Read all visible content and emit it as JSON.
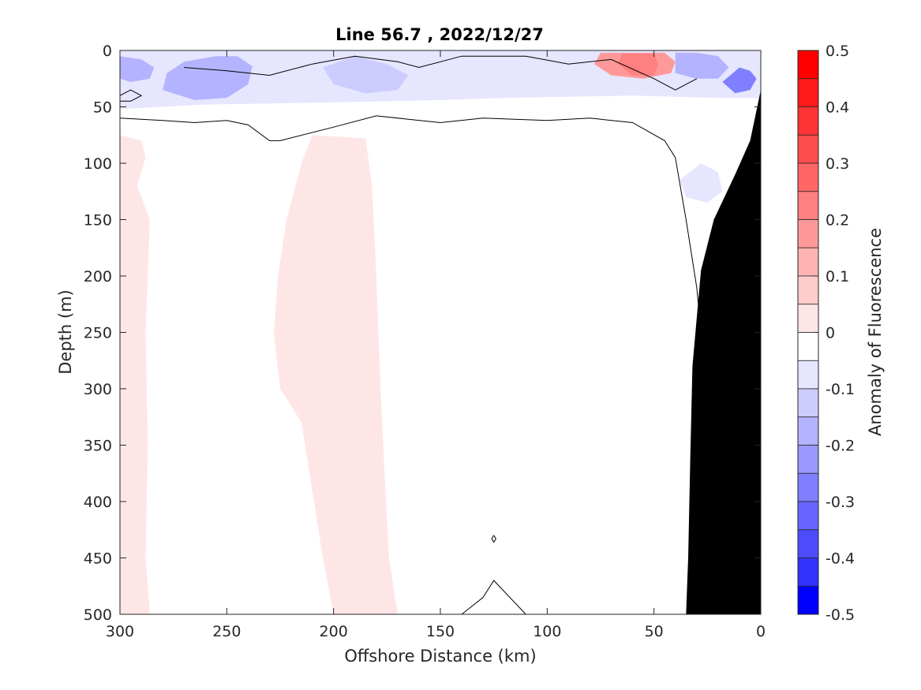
{
  "chart_data": {
    "type": "heatmap",
    "title": "Line 56.7 , 2022/12/27",
    "xlabel": "Offshore Distance (km)",
    "ylabel": "Depth (m)",
    "xlim": [
      300,
      0
    ],
    "ylim": [
      0,
      500
    ],
    "x_reversed": true,
    "y_reversed": true,
    "xticks": [
      300,
      250,
      200,
      150,
      100,
      50,
      0
    ],
    "yticks": [
      0,
      50,
      100,
      150,
      200,
      250,
      300,
      350,
      400,
      450,
      500
    ],
    "colorbar": {
      "label": "Anomaly of Fluorescence",
      "range": [
        -0.5,
        0.5
      ],
      "ticks": [
        0.5,
        0.4,
        0.3,
        0.2,
        0.1,
        0,
        -0.1,
        -0.2,
        -0.3,
        -0.4,
        -0.5
      ],
      "levels": [
        {
          "min": 0.45,
          "max": 0.5,
          "color": "#ff0000"
        },
        {
          "min": 0.4,
          "max": 0.45,
          "color": "#ff1a1a"
        },
        {
          "min": 0.35,
          "max": 0.4,
          "color": "#ff3333"
        },
        {
          "min": 0.3,
          "max": 0.35,
          "color": "#ff4d4d"
        },
        {
          "min": 0.25,
          "max": 0.3,
          "color": "#ff6666"
        },
        {
          "min": 0.2,
          "max": 0.25,
          "color": "#ff8080"
        },
        {
          "min": 0.15,
          "max": 0.2,
          "color": "#ff9999"
        },
        {
          "min": 0.1,
          "max": 0.15,
          "color": "#ffb3b3"
        },
        {
          "min": 0.05,
          "max": 0.1,
          "color": "#ffcccc"
        },
        {
          "min": 0.0,
          "max": 0.05,
          "color": "#ffe6e6"
        },
        {
          "min": -0.05,
          "max": 0.0,
          "color": "#ffffff"
        },
        {
          "min": -0.1,
          "max": -0.05,
          "color": "#e6e6ff"
        },
        {
          "min": -0.15,
          "max": -0.1,
          "color": "#ccccff"
        },
        {
          "min": -0.2,
          "max": -0.15,
          "color": "#b3b3ff"
        },
        {
          "min": -0.25,
          "max": -0.2,
          "color": "#9999ff"
        },
        {
          "min": -0.3,
          "max": -0.25,
          "color": "#8080ff"
        },
        {
          "min": -0.35,
          "max": -0.3,
          "color": "#6666ff"
        },
        {
          "min": -0.4,
          "max": -0.35,
          "color": "#4d4dff"
        },
        {
          "min": -0.45,
          "max": -0.4,
          "color": "#3333ff"
        },
        {
          "min": -0.5,
          "max": -0.45,
          "color": "#0000ff"
        }
      ]
    },
    "regions": [
      {
        "name": "surface-negative-band",
        "value": -0.08,
        "polygon": [
          [
            300,
            0
          ],
          [
            0,
            0
          ],
          [
            0,
            42
          ],
          [
            20,
            42
          ],
          [
            60,
            40
          ],
          [
            120,
            42
          ],
          [
            150,
            44
          ],
          [
            200,
            46
          ],
          [
            260,
            48
          ],
          [
            300,
            52
          ]
        ]
      },
      {
        "name": "surface-negative-left",
        "value": -0.17,
        "polygon": [
          [
            300,
            5
          ],
          [
            290,
            8
          ],
          [
            284,
            15
          ],
          [
            286,
            25
          ],
          [
            295,
            28
          ],
          [
            300,
            25
          ]
        ]
      },
      {
        "name": "surface-negative-center",
        "value": -0.17,
        "polygon": [
          [
            255,
            5
          ],
          [
            245,
            5
          ],
          [
            238,
            14
          ],
          [
            240,
            30
          ],
          [
            250,
            42
          ],
          [
            265,
            44
          ],
          [
            280,
            35
          ],
          [
            278,
            20
          ],
          [
            270,
            10
          ]
        ]
      },
      {
        "name": "surface-negative-midright",
        "value": -0.15,
        "polygon": [
          [
            190,
            5
          ],
          [
            175,
            12
          ],
          [
            165,
            22
          ],
          [
            170,
            35
          ],
          [
            185,
            38
          ],
          [
            200,
            30
          ],
          [
            205,
            15
          ]
        ]
      },
      {
        "name": "surface-negative-right",
        "value": -0.2,
        "polygon": [
          [
            40,
            2
          ],
          [
            30,
            2
          ],
          [
            20,
            5
          ],
          [
            15,
            15
          ],
          [
            20,
            25
          ],
          [
            30,
            25
          ],
          [
            40,
            20
          ]
        ]
      },
      {
        "name": "surface-negative-coastal-core",
        "value": -0.3,
        "polygon": [
          [
            10,
            15
          ],
          [
            5,
            18
          ],
          [
            2,
            25
          ],
          [
            5,
            35
          ],
          [
            12,
            38
          ],
          [
            18,
            28
          ]
        ]
      },
      {
        "name": "positive-patch-surface",
        "value": 0.15,
        "polygon": [
          [
            75,
            2
          ],
          [
            45,
            2
          ],
          [
            40,
            10
          ],
          [
            42,
            20
          ],
          [
            55,
            25
          ],
          [
            70,
            22
          ],
          [
            78,
            12
          ]
        ]
      },
      {
        "name": "positive-patch-surface-core",
        "value": 0.2,
        "polygon": [
          [
            65,
            3
          ],
          [
            50,
            3
          ],
          [
            48,
            12
          ],
          [
            50,
            22
          ],
          [
            60,
            22
          ],
          [
            67,
            12
          ]
        ]
      },
      {
        "name": "subsurface-negative-slope",
        "value": -0.08,
        "polygon": [
          [
            28,
            100
          ],
          [
            20,
            108
          ],
          [
            18,
            125
          ],
          [
            25,
            135
          ],
          [
            35,
            130
          ],
          [
            38,
            115
          ]
        ]
      },
      {
        "name": "offshore-positive-band-left",
        "value": 0.03,
        "polygon": [
          [
            300,
            75
          ],
          [
            290,
            80
          ],
          [
            288,
            95
          ],
          [
            292,
            120
          ],
          [
            286,
            150
          ],
          [
            288,
            250
          ],
          [
            287,
            350
          ],
          [
            288,
            450
          ],
          [
            286,
            500
          ],
          [
            300,
            500
          ]
        ]
      },
      {
        "name": "offshore-positive-band-center",
        "value": 0.03,
        "polygon": [
          [
            210,
            75
          ],
          [
            185,
            78
          ],
          [
            182,
            120
          ],
          [
            180,
            200
          ],
          [
            178,
            300
          ],
          [
            176,
            380
          ],
          [
            174,
            450
          ],
          [
            170,
            500
          ],
          [
            200,
            500
          ],
          [
            205,
            450
          ],
          [
            210,
            390
          ],
          [
            215,
            330
          ],
          [
            225,
            300
          ],
          [
            228,
            250
          ],
          [
            226,
            200
          ],
          [
            222,
            150
          ],
          [
            215,
            100
          ]
        ]
      },
      {
        "name": "bathymetry",
        "value": null,
        "polygon": [
          [
            0,
            35
          ],
          [
            5,
            80
          ],
          [
            12,
            110
          ],
          [
            22,
            150
          ],
          [
            28,
            195
          ],
          [
            32,
            280
          ],
          [
            33,
            360
          ],
          [
            34,
            450
          ],
          [
            35,
            500
          ],
          [
            0,
            500
          ]
        ]
      }
    ],
    "zero_contour": [
      {
        "name": "surface-contour",
        "points": [
          [
            300,
            60
          ],
          [
            280,
            62
          ],
          [
            265,
            64
          ],
          [
            250,
            62
          ],
          [
            240,
            66
          ],
          [
            230,
            80
          ],
          [
            225,
            80
          ],
          [
            200,
            68
          ],
          [
            180,
            58
          ],
          [
            150,
            64
          ],
          [
            130,
            60
          ],
          [
            100,
            62
          ],
          [
            80,
            60
          ],
          [
            60,
            64
          ],
          [
            45,
            80
          ],
          [
            40,
            95
          ],
          [
            35,
            150
          ],
          [
            30,
            210
          ],
          [
            28,
            250
          ],
          [
            27,
            290
          ],
          [
            28,
            320
          ],
          [
            30,
            360
          ],
          [
            32,
            400
          ]
        ]
      },
      {
        "name": "upper-contour",
        "points": [
          [
            270,
            15
          ],
          [
            250,
            18
          ],
          [
            230,
            22
          ],
          [
            210,
            12
          ],
          [
            190,
            5
          ],
          [
            170,
            10
          ],
          [
            160,
            15
          ],
          [
            140,
            5
          ],
          [
            110,
            5
          ],
          [
            90,
            12
          ],
          [
            70,
            8
          ],
          [
            50,
            25
          ],
          [
            40,
            35
          ],
          [
            30,
            25
          ]
        ]
      },
      {
        "name": "small-contour-left",
        "points": [
          [
            300,
            40
          ],
          [
            295,
            35
          ],
          [
            290,
            40
          ],
          [
            295,
            45
          ],
          [
            300,
            45
          ]
        ]
      },
      {
        "name": "tiny-contour-center",
        "points": [
          [
            125,
            430
          ],
          [
            124,
            433
          ],
          [
            125,
            436
          ],
          [
            126,
            433
          ],
          [
            125,
            430
          ]
        ]
      },
      {
        "name": "bottom-bump-contour",
        "points": [
          [
            140,
            500
          ],
          [
            130,
            485
          ],
          [
            125,
            470
          ],
          [
            120,
            480
          ],
          [
            110,
            500
          ]
        ]
      }
    ]
  }
}
